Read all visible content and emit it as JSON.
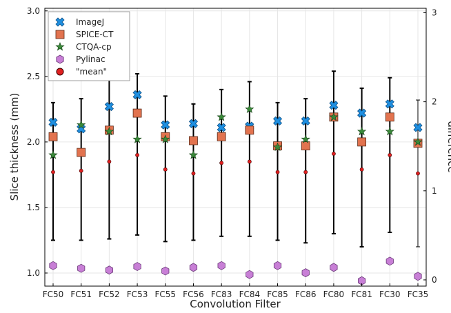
{
  "chart_data": {
    "type": "scatter",
    "xlabel": "Convolution Filter",
    "ylabel": "Slice thickness (mm)",
    "y2label": "difference",
    "categories": [
      "FC50",
      "FC51",
      "FC52",
      "FC53",
      "FC55",
      "FC56",
      "FC83",
      "FC84",
      "FC85",
      "FC86",
      "FC80",
      "FC81",
      "FC30",
      "FC35"
    ],
    "ylim": [
      0.9,
      3.02
    ],
    "yticks": [
      "1.0",
      "1.5",
      "2.0",
      "2.5",
      "3.0"
    ],
    "y2lim": [
      -0.07,
      3.05
    ],
    "y2ticks": [
      "0",
      "1",
      "2",
      "3"
    ],
    "grid": true,
    "legend_position": "top-left",
    "series": [
      {
        "name": "ImageJ",
        "marker": "x-filled",
        "color": "#1f8fe0",
        "values": [
          2.15,
          2.1,
          2.27,
          2.36,
          2.13,
          2.14,
          2.11,
          2.12,
          2.16,
          2.16,
          2.28,
          2.22,
          2.29,
          2.11
        ]
      },
      {
        "name": "SPICE-CT",
        "marker": "square",
        "color": "#e2734f",
        "values": [
          2.04,
          1.92,
          2.09,
          2.22,
          2.04,
          2.01,
          2.04,
          2.09,
          1.97,
          1.97,
          2.19,
          2.0,
          2.19,
          1.99
        ]
      },
      {
        "name": "CTQA-cp",
        "marker": "star",
        "color": "#3a8a3a",
        "values": [
          1.9,
          2.13,
          2.08,
          2.02,
          2.02,
          1.9,
          2.19,
          2.25,
          1.96,
          2.02,
          2.19,
          2.08,
          2.08,
          2.0
        ]
      },
      {
        "name": "Pylinac",
        "marker": "hexagon",
        "color": "#c87fd6",
        "axis": "right",
        "values": [
          0.16,
          0.13,
          0.11,
          0.15,
          0.1,
          0.14,
          0.16,
          0.06,
          0.16,
          0.08,
          0.14,
          -0.01,
          0.21,
          0.04
        ]
      },
      {
        "name": "\"mean\"",
        "marker": "circle",
        "color": "#e02020",
        "values": [
          1.77,
          1.78,
          1.85,
          1.9,
          1.79,
          1.76,
          1.84,
          1.85,
          1.77,
          1.77,
          1.91,
          1.79,
          1.9,
          1.76
        ]
      }
    ],
    "error_bars": {
      "lower": [
        1.25,
        1.25,
        1.26,
        1.29,
        1.24,
        1.25,
        1.28,
        1.28,
        1.25,
        1.23,
        1.3,
        1.2,
        1.31,
        1.2
      ],
      "upper": [
        2.3,
        2.33,
        2.5,
        2.52,
        2.35,
        2.29,
        2.4,
        2.46,
        2.3,
        2.33,
        2.54,
        2.41,
        2.49,
        2.32
      ],
      "color": "#000000"
    }
  }
}
